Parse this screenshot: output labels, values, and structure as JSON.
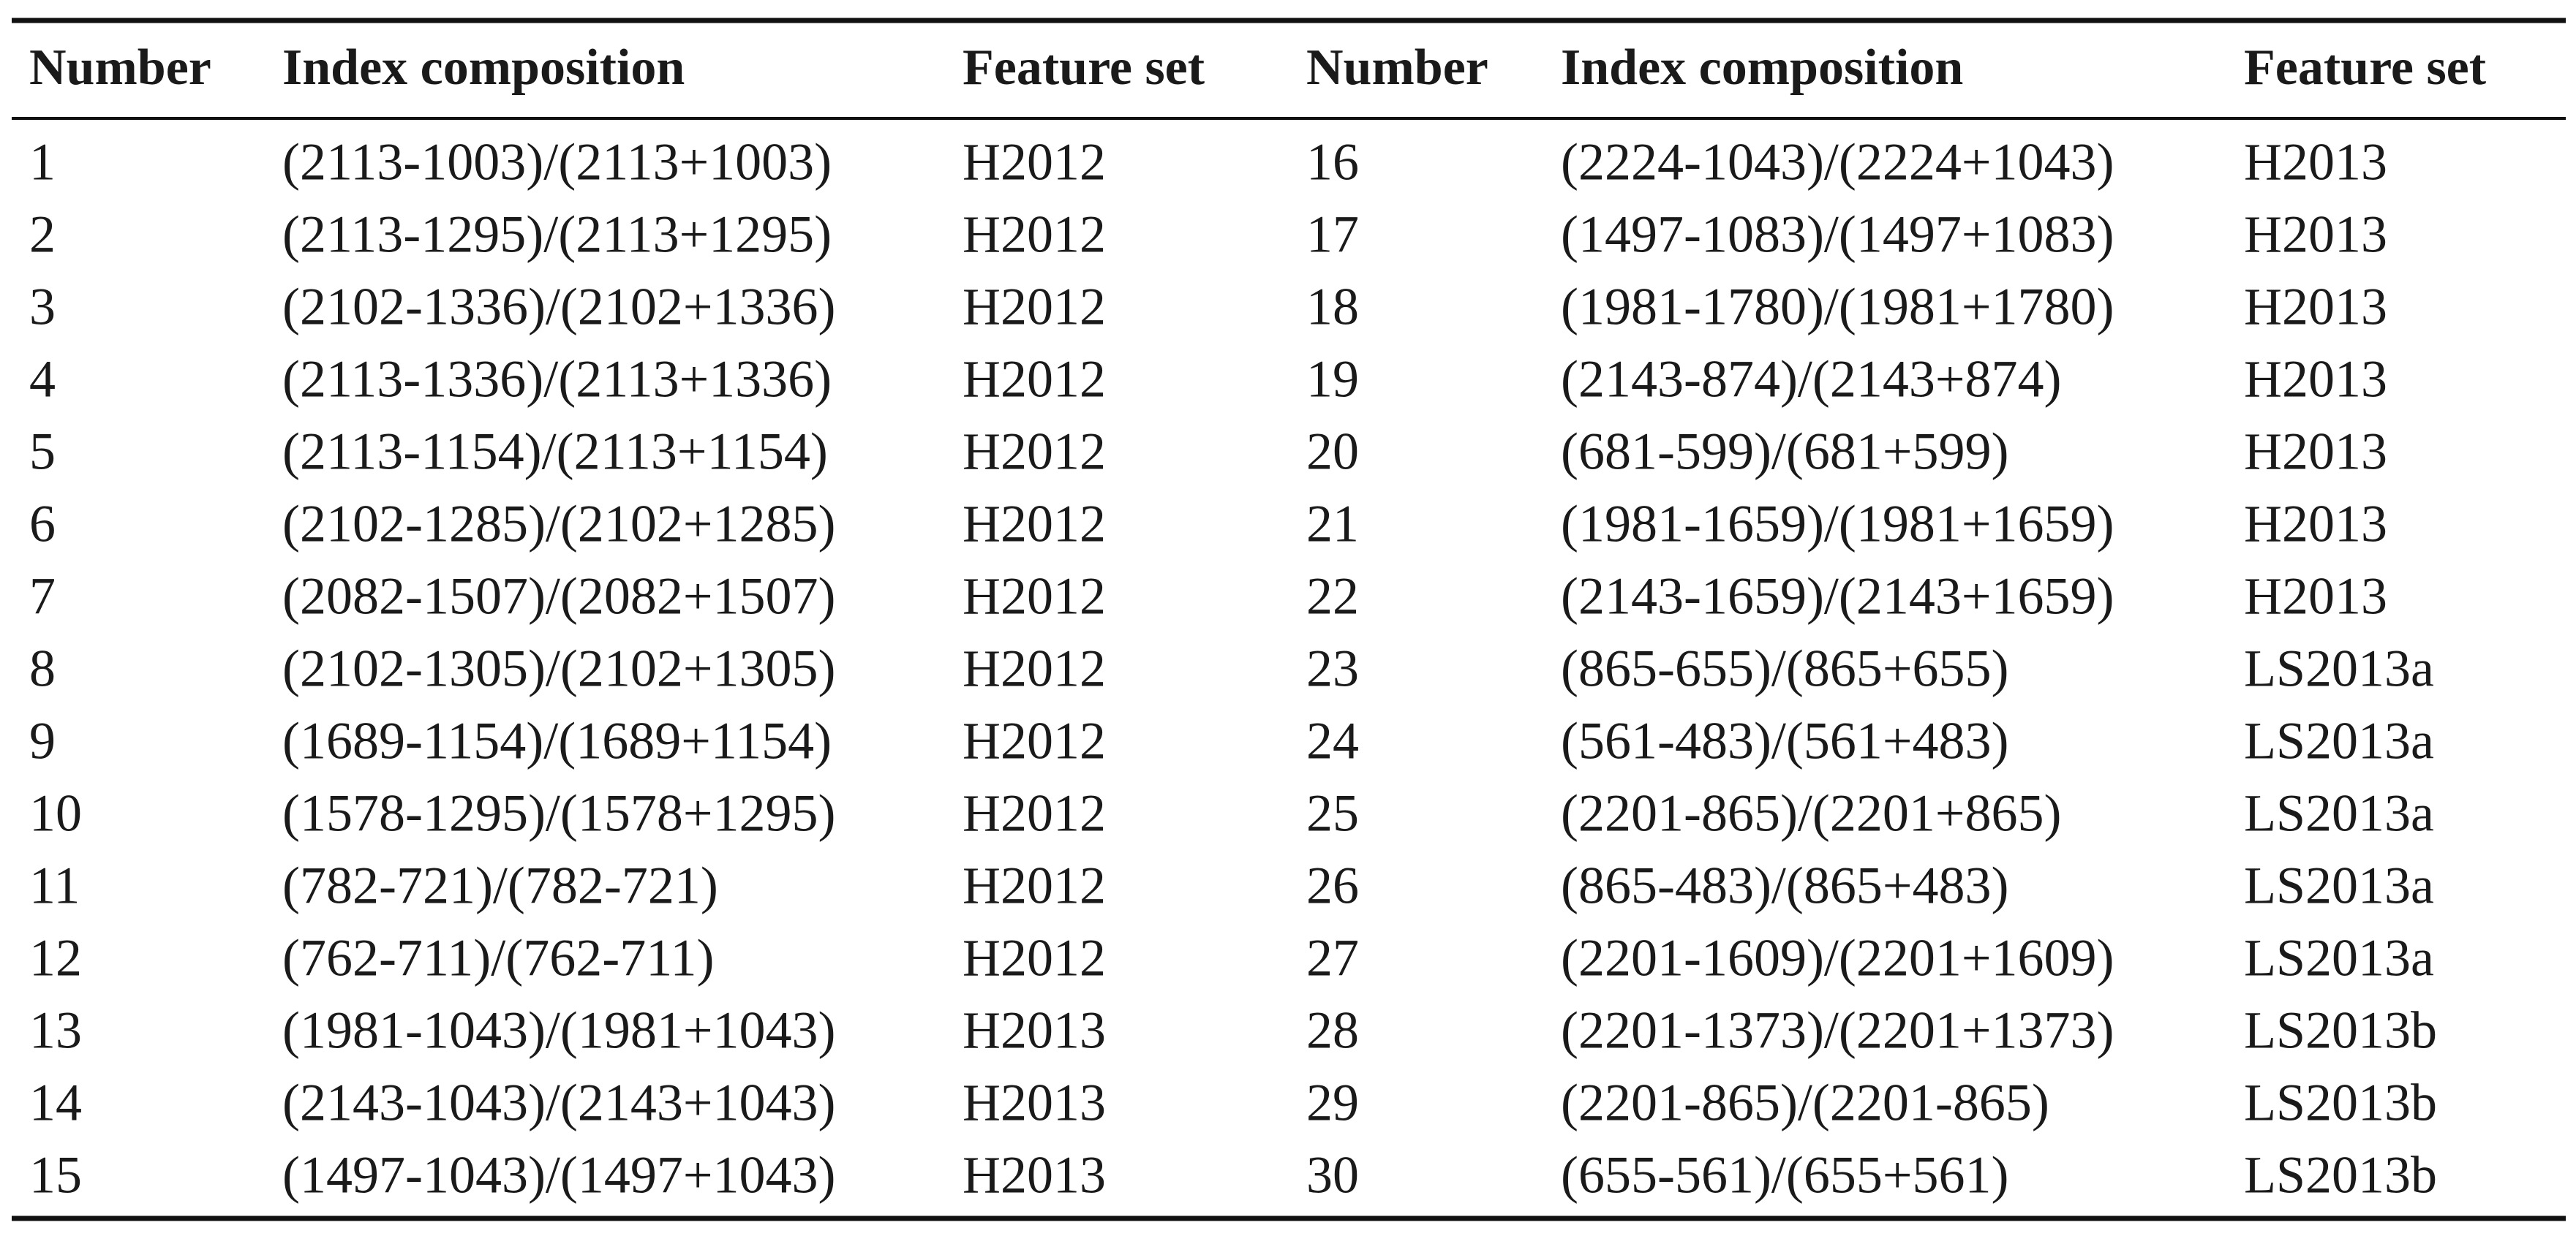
{
  "table": {
    "header": [
      "Number",
      "Index composition",
      "Feature set",
      "Number",
      "Index composition",
      "Feature set"
    ],
    "rows": [
      [
        "1",
        "(2113-1003)/(2113+1003)",
        "H2012",
        "16",
        "(2224-1043)/(2224+1043)",
        "H2013"
      ],
      [
        "2",
        "(2113-1295)/(2113+1295)",
        "H2012",
        "17",
        "(1497-1083)/(1497+1083)",
        "H2013"
      ],
      [
        "3",
        "(2102-1336)/(2102+1336)",
        "H2012",
        "18",
        "(1981-1780)/(1981+1780)",
        "H2013"
      ],
      [
        "4",
        "(2113-1336)/(2113+1336)",
        "H2012",
        "19",
        "(2143-874)/(2143+874)",
        "H2013"
      ],
      [
        "5",
        "(2113-1154)/(2113+1154)",
        "H2012",
        "20",
        "(681-599)/(681+599)",
        "H2013"
      ],
      [
        "6",
        "(2102-1285)/(2102+1285)",
        "H2012",
        "21",
        "(1981-1659)/(1981+1659)",
        "H2013"
      ],
      [
        "7",
        "(2082-1507)/(2082+1507)",
        "H2012",
        "22",
        "(2143-1659)/(2143+1659)",
        "H2013"
      ],
      [
        "8",
        "(2102-1305)/(2102+1305)",
        "H2012",
        "23",
        "(865-655)/(865+655)",
        "LS2013a"
      ],
      [
        "9",
        "(1689-1154)/(1689+1154)",
        "H2012",
        "24",
        "(561-483)/(561+483)",
        "LS2013a"
      ],
      [
        "10",
        "(1578-1295)/(1578+1295)",
        "H2012",
        "25",
        "(2201-865)/(2201+865)",
        "LS2013a"
      ],
      [
        "11",
        "(782-721)/(782-721)",
        "H2012",
        "26",
        "(865-483)/(865+483)",
        "LS2013a"
      ],
      [
        "12",
        "(762-711)/(762-711)",
        "H2012",
        "27",
        "(2201-1609)/(2201+1609)",
        "LS2013a"
      ],
      [
        "13",
        "(1981-1043)/(1981+1043)",
        "H2013",
        "28",
        "(2201-1373)/(2201+1373)",
        "LS2013b"
      ],
      [
        "14",
        "(2143-1043)/(2143+1043)",
        "H2013",
        "29",
        "(2201-865)/(2201-865)",
        "LS2013b"
      ],
      [
        "15",
        "(1497-1043)/(1497+1043)",
        "H2013",
        "30",
        "(655-561)/(655+561)",
        "LS2013b"
      ]
    ]
  }
}
